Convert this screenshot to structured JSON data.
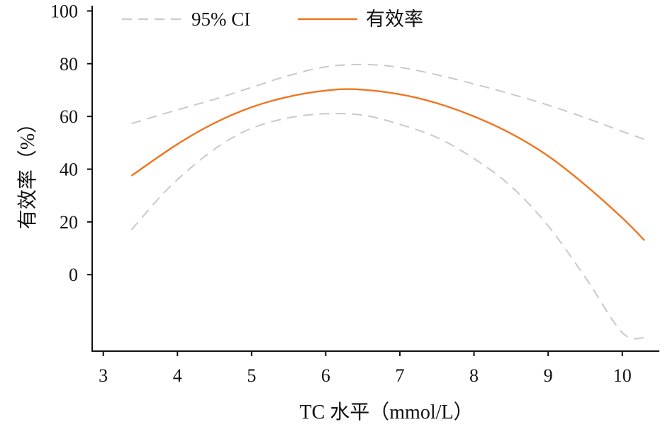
{
  "chart_data": {
    "type": "line",
    "xlabel": "TC 水平（mmol/L）",
    "ylabel": "有效率（%）",
    "xlim": [
      2.85,
      10.5
    ],
    "ylim": [
      -29,
      102
    ],
    "x_ticks": [
      "3",
      "4",
      "5",
      "6",
      "7",
      "8",
      "9",
      "10"
    ],
    "y_ticks": [
      "100",
      "80",
      "60",
      "40",
      "20",
      "0"
    ],
    "grid": false,
    "legend_position": "top",
    "legend": [
      "95% CI",
      "有效率"
    ],
    "colors": {
      "ci": "#c6cbc9",
      "estimate": "#f07520"
    },
    "series": [
      {
        "name": "有效率",
        "style": "solid",
        "x": [
          3.38,
          4.0,
          4.5,
          5.0,
          5.5,
          6.0,
          6.4,
          7.0,
          7.5,
          8.0,
          8.5,
          9.0,
          9.5,
          10.0,
          10.3
        ],
        "y": [
          37.5,
          49.5,
          57.5,
          63.5,
          67.5,
          69.8,
          70.3,
          68.4,
          65.0,
          60.0,
          53.5,
          45.0,
          34.0,
          21.5,
          13.0
        ]
      },
      {
        "name": "95% CI",
        "style": "dashed",
        "x": [
          3.38,
          4.0,
          4.5,
          5.0,
          5.5,
          6.0,
          6.5,
          7.0,
          7.5,
          8.0,
          8.5,
          9.0,
          9.5,
          10.0,
          10.3
        ],
        "y": [
          57.3,
          62.5,
          66.5,
          71.0,
          75.5,
          78.8,
          79.7,
          78.6,
          75.8,
          72.3,
          68.5,
          64.3,
          59.5,
          54.3,
          51.3
        ]
      },
      {
        "name": "95% CI",
        "style": "dashed",
        "x": [
          3.38,
          3.8,
          4.2,
          4.6,
          5.0,
          5.5,
          6.0,
          6.5,
          7.0,
          7.5,
          8.0,
          8.5,
          9.0,
          9.5,
          10.0,
          10.3
        ],
        "y": [
          17.0,
          30.5,
          41.0,
          49.5,
          55.5,
          59.5,
          61.0,
          60.5,
          57.0,
          52.0,
          44.0,
          33.5,
          18.5,
          -1.0,
          -22.0,
          -24.0
        ]
      }
    ]
  }
}
